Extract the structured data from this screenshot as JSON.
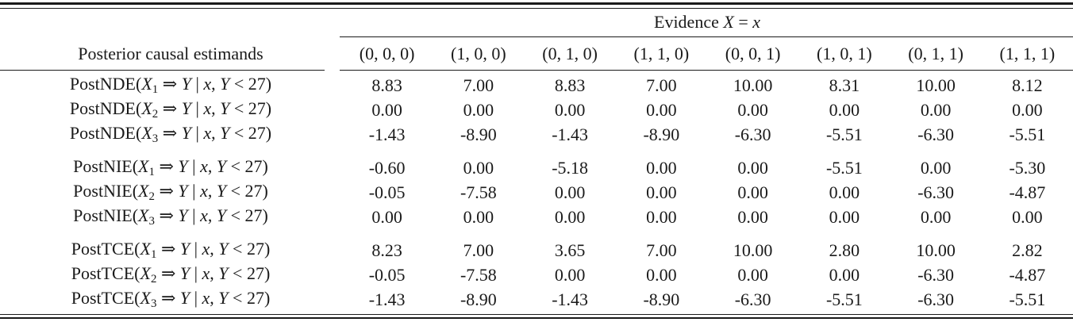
{
  "colors": {
    "background": "#ffffff",
    "text": "#1a1a1a",
    "rule": "#1a1a1a"
  },
  "table": {
    "stub_label": "Posterior causal estimands",
    "evidence_parts": [
      {
        "t": "Evidence "
      },
      {
        "t": "X",
        "it": true
      },
      {
        "t": " = "
      },
      {
        "t": "x",
        "it": true
      }
    ],
    "columns": [
      "(0, 0, 0)",
      "(1, 0, 0)",
      "(0, 1, 0)",
      "(1, 1, 0)",
      "(0, 0, 1)",
      "(1, 0, 1)",
      "(0, 1, 1)",
      "(1, 1, 1)"
    ],
    "label_pattern": [
      {
        "t": "{fn}("
      },
      {
        "t": "X",
        "it": true
      },
      {
        "t": "{sub}",
        "sub": true
      },
      {
        "t": " ⇒ "
      },
      {
        "t": "Y",
        "it": true
      },
      {
        "t": " | "
      },
      {
        "t": "x",
        "it": true
      },
      {
        "t": ", "
      },
      {
        "t": "Y",
        "it": true
      },
      {
        "t": " < 27)"
      }
    ],
    "rows": [
      {
        "group": 1,
        "fn": "PostNDE",
        "sub": "1",
        "values": [
          "8.83",
          "7.00",
          "8.83",
          "7.00",
          "10.00",
          "8.31",
          "10.00",
          "8.12"
        ]
      },
      {
        "group": 1,
        "fn": "PostNDE",
        "sub": "2",
        "values": [
          "0.00",
          "0.00",
          "0.00",
          "0.00",
          "0.00",
          "0.00",
          "0.00",
          "0.00"
        ]
      },
      {
        "group": 1,
        "fn": "PostNDE",
        "sub": "3",
        "values": [
          "-1.43",
          "-8.90",
          "-1.43",
          "-8.90",
          "-6.30",
          "-5.51",
          "-6.30",
          "-5.51"
        ]
      },
      {
        "group": 2,
        "fn": "PostNIE",
        "sub": "1",
        "values": [
          "-0.60",
          "0.00",
          "-5.18",
          "0.00",
          "0.00",
          "-5.51",
          "0.00",
          "-5.30"
        ]
      },
      {
        "group": 2,
        "fn": "PostNIE",
        "sub": "2",
        "values": [
          "-0.05",
          "-7.58",
          "0.00",
          "0.00",
          "0.00",
          "0.00",
          "-6.30",
          "-4.87"
        ]
      },
      {
        "group": 2,
        "fn": "PostNIE",
        "sub": "3",
        "values": [
          "0.00",
          "0.00",
          "0.00",
          "0.00",
          "0.00",
          "0.00",
          "0.00",
          "0.00"
        ]
      },
      {
        "group": 3,
        "fn": "PostTCE",
        "sub": "1",
        "values": [
          "8.23",
          "7.00",
          "3.65",
          "7.00",
          "10.00",
          "2.80",
          "10.00",
          "2.82"
        ]
      },
      {
        "group": 3,
        "fn": "PostTCE",
        "sub": "2",
        "values": [
          "-0.05",
          "-7.58",
          "0.00",
          "0.00",
          "0.00",
          "0.00",
          "-6.30",
          "-4.87"
        ]
      },
      {
        "group": 3,
        "fn": "PostTCE",
        "sub": "3",
        "values": [
          "-1.43",
          "-8.90",
          "-1.43",
          "-8.90",
          "-6.30",
          "-5.51",
          "-6.30",
          "-5.51"
        ]
      }
    ]
  },
  "chart_data": {
    "type": "table",
    "title": "Evidence X = x",
    "columns": [
      "Posterior causal estimands",
      "(0, 0, 0)",
      "(1, 0, 0)",
      "(0, 1, 0)",
      "(1, 1, 0)",
      "(0, 0, 1)",
      "(1, 0, 1)",
      "(0, 1, 1)",
      "(1, 1, 1)"
    ],
    "rows": [
      [
        "PostNDE(X₁ ⇒ Y | x, Y < 27)",
        "8.83",
        "7.00",
        "8.83",
        "7.00",
        "10.00",
        "8.31",
        "10.00",
        "8.12"
      ],
      [
        "PostNDE(X₂ ⇒ Y | x, Y < 27)",
        "0.00",
        "0.00",
        "0.00",
        "0.00",
        "0.00",
        "0.00",
        "0.00",
        "0.00"
      ],
      [
        "PostNDE(X₃ ⇒ Y | x, Y < 27)",
        "-1.43",
        "-8.90",
        "-1.43",
        "-8.90",
        "-6.30",
        "-5.51",
        "-6.30",
        "-5.51"
      ],
      [
        "PostNIE(X₁ ⇒ Y | x, Y < 27)",
        "-0.60",
        "0.00",
        "-5.18",
        "0.00",
        "0.00",
        "-5.51",
        "0.00",
        "-5.30"
      ],
      [
        "PostNIE(X₂ ⇒ Y | x, Y < 27)",
        "-0.05",
        "-7.58",
        "0.00",
        "0.00",
        "0.00",
        "0.00",
        "-6.30",
        "-4.87"
      ],
      [
        "PostNIE(X₃ ⇒ Y | x, Y < 27)",
        "0.00",
        "0.00",
        "0.00",
        "0.00",
        "0.00",
        "0.00",
        "0.00",
        "0.00"
      ],
      [
        "PostTCE(X₁ ⇒ Y | x, Y < 27)",
        "8.23",
        "7.00",
        "3.65",
        "7.00",
        "10.00",
        "2.80",
        "10.00",
        "2.82"
      ],
      [
        "PostTCE(X₂ ⇒ Y | x, Y < 27)",
        "-0.05",
        "-7.58",
        "0.00",
        "0.00",
        "0.00",
        "0.00",
        "-6.30",
        "-4.87"
      ],
      [
        "PostTCE(X₃ ⇒ Y | x, Y < 27)",
        "-1.43",
        "-8.90",
        "-1.43",
        "-8.90",
        "-6.30",
        "-5.51",
        "-6.30",
        "-5.51"
      ]
    ]
  }
}
